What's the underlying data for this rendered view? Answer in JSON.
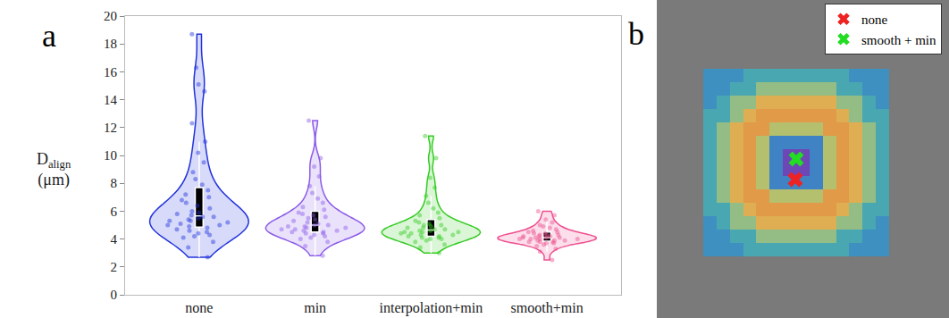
{
  "chart_data": [
    {
      "type": "violin",
      "panel_label": "a",
      "y_label": {
        "text": "D",
        "subscript": "align",
        "unit": "(μm)"
      },
      "categories": [
        "none",
        "min",
        "interpolation+min",
        "smooth+min"
      ],
      "colors": [
        "#2233dd",
        "#8c5ce8",
        "#33cc22",
        "#ee4f8f"
      ],
      "values": [
        [
          2.7,
          3.4,
          3.8,
          4.1,
          4.2,
          4.3,
          4.4,
          4.5,
          4.6,
          4.7,
          4.8,
          4.9,
          5.0,
          5.0,
          5.1,
          5.2,
          5.3,
          5.3,
          5.4,
          5.5,
          5.6,
          5.6,
          5.7,
          5.8,
          5.9,
          6.0,
          6.2,
          6.4,
          6.6,
          6.8,
          7.0,
          7.2,
          7.5,
          7.9,
          8.3,
          8.8,
          9.5,
          10.2,
          11.0,
          12.3,
          14.6,
          15.1,
          16.3,
          18.7
        ],
        [
          2.8,
          3.5,
          3.8,
          4.0,
          4.1,
          4.2,
          4.3,
          4.4,
          4.4,
          4.5,
          4.5,
          4.6,
          4.6,
          4.7,
          4.7,
          4.8,
          4.8,
          4.9,
          4.9,
          5.0,
          5.0,
          5.1,
          5.2,
          5.3,
          5.4,
          5.5,
          5.6,
          5.7,
          5.8,
          5.9,
          6.1,
          6.3,
          6.6,
          6.9,
          7.3,
          7.8,
          8.5,
          9.2,
          9.8,
          12.5
        ],
        [
          3.0,
          3.4,
          3.6,
          3.8,
          3.9,
          4.0,
          4.0,
          4.1,
          4.1,
          4.2,
          4.2,
          4.3,
          4.3,
          4.4,
          4.4,
          4.5,
          4.5,
          4.5,
          4.6,
          4.6,
          4.7,
          4.7,
          4.8,
          4.8,
          4.9,
          5.0,
          5.0,
          5.1,
          5.2,
          5.3,
          5.5,
          5.7,
          5.9,
          6.2,
          6.6,
          7.1,
          7.7,
          8.4,
          9.8,
          11.4
        ],
        [
          2.5,
          3.1,
          3.3,
          3.5,
          3.6,
          3.7,
          3.7,
          3.8,
          3.8,
          3.8,
          3.9,
          3.9,
          3.9,
          4.0,
          4.0,
          4.0,
          4.0,
          4.1,
          4.1,
          4.1,
          4.1,
          4.2,
          4.2,
          4.2,
          4.3,
          4.3,
          4.3,
          4.4,
          4.4,
          4.5,
          4.5,
          4.6,
          4.7,
          4.8,
          4.9,
          5.0,
          5.2,
          5.4,
          5.7,
          6.0
        ]
      ],
      "ylim": [
        0,
        20
      ],
      "yticks": [
        0,
        2,
        4,
        6,
        8,
        10,
        12,
        14,
        16,
        18,
        20
      ],
      "grid": false,
      "legend": false
    },
    {
      "type": "heatmap",
      "panel_label": "b",
      "cells": [
        [
          0.35,
          0.35,
          0.35,
          0.45,
          0.45,
          0.45,
          0.45,
          0.45,
          0.45,
          0.45,
          0.45,
          0.35,
          0.35,
          0.35
        ],
        [
          0.35,
          0.35,
          0.45,
          0.45,
          0.6,
          0.6,
          0.6,
          0.6,
          0.6,
          0.6,
          0.45,
          0.45,
          0.35,
          0.35
        ],
        [
          0.35,
          0.45,
          0.6,
          0.6,
          0.85,
          0.85,
          0.85,
          0.85,
          0.85,
          0.85,
          0.6,
          0.6,
          0.45,
          0.35
        ],
        [
          0.45,
          0.45,
          0.6,
          0.85,
          0.95,
          0.95,
          0.95,
          0.95,
          0.95,
          0.95,
          0.85,
          0.6,
          0.45,
          0.45
        ],
        [
          0.45,
          0.6,
          0.85,
          0.95,
          0.95,
          0.65,
          0.65,
          0.65,
          0.65,
          0.95,
          0.95,
          0.85,
          0.6,
          0.45
        ],
        [
          0.45,
          0.6,
          0.85,
          0.95,
          0.65,
          0.3,
          0.3,
          0.3,
          0.3,
          0.65,
          0.95,
          0.85,
          0.6,
          0.45
        ],
        [
          0.45,
          0.6,
          0.85,
          0.95,
          0.65,
          0.3,
          0.05,
          0.05,
          0.3,
          0.65,
          0.95,
          0.85,
          0.6,
          0.45
        ],
        [
          0.45,
          0.6,
          0.85,
          0.95,
          0.65,
          0.3,
          0.05,
          0.05,
          0.3,
          0.65,
          0.95,
          0.85,
          0.6,
          0.45
        ],
        [
          0.45,
          0.6,
          0.85,
          0.95,
          0.65,
          0.3,
          0.3,
          0.3,
          0.3,
          0.65,
          0.95,
          0.85,
          0.6,
          0.45
        ],
        [
          0.45,
          0.6,
          0.85,
          0.95,
          0.95,
          0.65,
          0.65,
          0.65,
          0.65,
          0.95,
          0.95,
          0.85,
          0.6,
          0.45
        ],
        [
          0.45,
          0.45,
          0.6,
          0.85,
          0.95,
          0.95,
          0.95,
          0.95,
          0.95,
          0.95,
          0.85,
          0.6,
          0.45,
          0.45
        ],
        [
          0.35,
          0.45,
          0.6,
          0.6,
          0.85,
          0.85,
          0.85,
          0.85,
          0.85,
          0.85,
          0.6,
          0.6,
          0.45,
          0.35
        ],
        [
          0.35,
          0.35,
          0.45,
          0.45,
          0.6,
          0.6,
          0.6,
          0.6,
          0.6,
          0.6,
          0.45,
          0.45,
          0.35,
          0.35
        ],
        [
          0.35,
          0.35,
          0.35,
          0.45,
          0.45,
          0.45,
          0.45,
          0.45,
          0.45,
          0.45,
          0.45,
          0.35,
          0.35,
          0.35
        ]
      ],
      "series": [
        {
          "name": "none",
          "color": "#ee2222",
          "marker": "x",
          "x": [
            6.43
          ],
          "y": [
            7.77
          ]
        },
        {
          "name": "smooth + min",
          "color": "#22dd22",
          "marker": "x",
          "x": [
            6.5
          ],
          "y": [
            6.23
          ]
        }
      ],
      "tick_labels": false,
      "legend": "upper right"
    }
  ]
}
